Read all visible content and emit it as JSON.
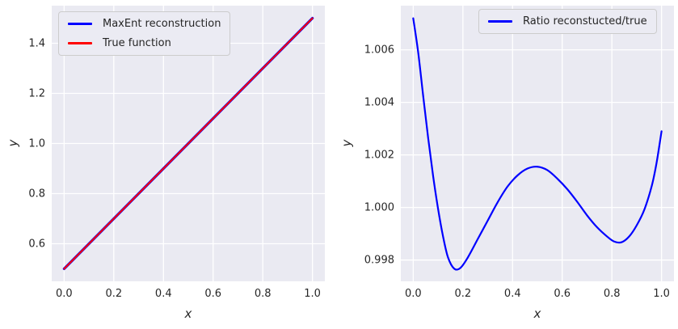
{
  "style": {
    "figure_bg": "#ffffff",
    "axes_bg": "#eaeaf2",
    "grid_color": "#ffffff",
    "text_color": "#262626",
    "legend_bg": "#ebebf3",
    "legend_border": "#cccccc",
    "blue": "#0000ff",
    "red": "#ff0000"
  },
  "chart_data": [
    {
      "type": "line",
      "title": "",
      "xlabel": "x",
      "ylabel": "y",
      "xlim": [
        -0.05,
        1.05
      ],
      "ylim": [
        0.45,
        1.55
      ],
      "xtick_labels": [
        "0.0",
        "0.2",
        "0.4",
        "0.6",
        "0.8",
        "1.0"
      ],
      "ytick_labels": [
        "0.6",
        "0.8",
        "1.0",
        "1.2",
        "1.4"
      ],
      "grid": true,
      "legend_position": "upper left",
      "series": [
        {
          "name": "MaxEnt reconstruction",
          "color": "#0000ff",
          "linewidth": 3.2,
          "x": [
            0.0,
            1.0
          ],
          "y": [
            0.5,
            1.5
          ]
        },
        {
          "name": "True function",
          "color": "#ff0000",
          "linewidth": 2.0,
          "x": [
            0.0,
            1.0
          ],
          "y": [
            0.5,
            1.5
          ]
        }
      ]
    },
    {
      "type": "line",
      "title": "",
      "xlabel": "x",
      "ylabel": "y",
      "xlim": [
        -0.05,
        1.05
      ],
      "ylim": [
        0.99719,
        1.00768
      ],
      "xtick_labels": [
        "0.0",
        "0.2",
        "0.4",
        "0.6",
        "0.8",
        "1.0"
      ],
      "ytick_labels": [
        "0.998",
        "1.000",
        "1.002",
        "1.004",
        "1.006"
      ],
      "grid": true,
      "legend_position": "upper right",
      "series": [
        {
          "name": "Ratio reconstucted/true",
          "color": "#0000ff",
          "linewidth": 2.2,
          "smooth": true,
          "x": [
            0.0,
            0.02,
            0.04,
            0.06,
            0.08,
            0.1,
            0.12,
            0.14,
            0.165,
            0.19,
            0.22,
            0.26,
            0.3,
            0.34,
            0.38,
            0.42,
            0.46,
            0.5,
            0.54,
            0.58,
            0.62,
            0.66,
            0.7,
            0.74,
            0.78,
            0.81,
            0.84,
            0.87,
            0.9,
            0.93,
            0.96,
            0.98,
            1.0
          ],
          "y": [
            1.0072,
            1.0059,
            1.00425,
            1.00265,
            1.0012,
            0.99995,
            0.9989,
            0.9981,
            0.99767,
            0.9977,
            0.9981,
            0.9988,
            0.9995,
            1.0002,
            1.0008,
            1.00122,
            1.00148,
            1.00155,
            1.00142,
            1.0011,
            1.0007,
            1.00022,
            0.9997,
            0.99925,
            0.9989,
            0.9987,
            0.99868,
            0.9989,
            0.99932,
            0.9999,
            1.0008,
            1.0017,
            1.0029
          ]
        }
      ]
    }
  ]
}
